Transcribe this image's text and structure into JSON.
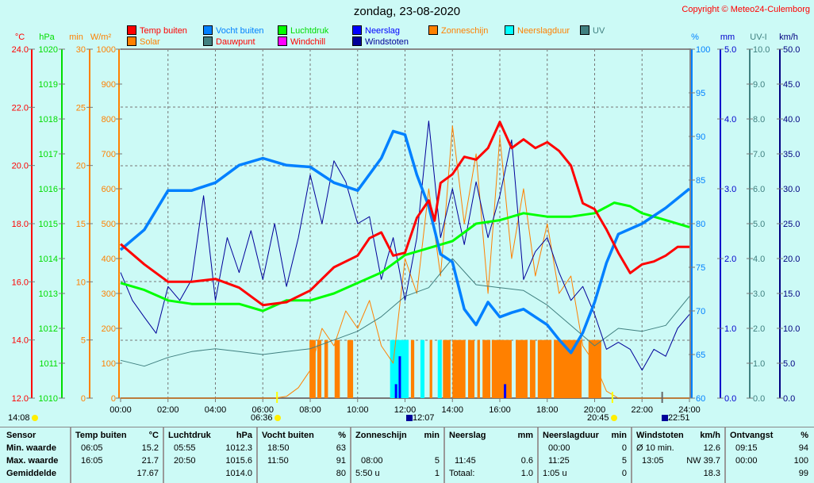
{
  "title": "zondag, 23-08-2020",
  "copyright": "Copyright © Meteo24-Culemborg",
  "legend": [
    {
      "label": "Temp buiten",
      "color": "#ff0000",
      "text_color": "#ff0000"
    },
    {
      "label": "Vocht buiten",
      "color": "#0080ff",
      "text_color": "#0080ff"
    },
    {
      "label": "Luchtdruk",
      "color": "#00ff00",
      "text_color": "#00dd00"
    },
    {
      "label": "Neerslag",
      "color": "#0000ff",
      "text_color": "#0000ff"
    },
    {
      "label": "Zonneschijn",
      "color": "#ff8000",
      "text_color": "#ff8000"
    },
    {
      "label": "Neerslagduur",
      "color": "#00ffff",
      "text_color": "#ff8000"
    },
    {
      "label": "UV",
      "color": "#408080",
      "text_color": "#408080"
    },
    {
      "label": "Solar",
      "color": "#ff8000",
      "text_color": "#ff8000"
    },
    {
      "label": "Dauwpunt",
      "color": "#408080",
      "text_color": "#ff0000"
    },
    {
      "label": "Windchill",
      "color": "#ff00ff",
      "text_color": "#ff0000"
    },
    {
      "label": "Windstoten",
      "color": "#000099",
      "text_color": "#000099"
    }
  ],
  "chart_data": {
    "type": "line",
    "x_ticks": [
      "00:00",
      "02:00",
      "04:00",
      "06:00",
      "08:00",
      "10:00",
      "12:00",
      "14:00",
      "16:00",
      "18:00",
      "20:00",
      "22:00",
      "24:00"
    ],
    "xlim": [
      0,
      24
    ],
    "grid": true,
    "axes": {
      "temp": {
        "unit": "°C",
        "range": [
          12,
          24
        ],
        "ticks": [
          "12.0",
          "14.0",
          "16.0",
          "18.0",
          "20.0",
          "22.0",
          "24.0"
        ],
        "color": "#ff0000"
      },
      "pressure": {
        "unit": "hPa",
        "range": [
          1010,
          1020
        ],
        "ticks": [
          "1010",
          "1011",
          "1012",
          "1013",
          "1014",
          "1015",
          "1016",
          "1017",
          "1018",
          "1019",
          "1020"
        ],
        "color": "#00dd00"
      },
      "minutes": {
        "unit": "min",
        "range": [
          0,
          30
        ],
        "ticks": [
          "0",
          "5",
          "10",
          "15",
          "20",
          "25",
          "30"
        ],
        "color": "#ff8000"
      },
      "solar": {
        "unit": "W/m²",
        "range": [
          0,
          1000
        ],
        "ticks": [
          "0",
          "100",
          "200",
          "300",
          "400",
          "500",
          "600",
          "700",
          "800",
          "900",
          "1000"
        ],
        "color": "#ff8000"
      },
      "humidity": {
        "unit": "%",
        "range": [
          60,
          100
        ],
        "ticks": [
          "60",
          "65",
          "70",
          "75",
          "80",
          "85",
          "90",
          "95",
          "100"
        ],
        "color": "#0080ff"
      },
      "rain": {
        "unit": "mm",
        "range": [
          0,
          5
        ],
        "ticks": [
          "0.0",
          "1.0",
          "2.0",
          "3.0",
          "4.0",
          "5.0"
        ],
        "color": "#0000cc"
      },
      "uv": {
        "unit": "UV-I",
        "range": [
          0,
          10
        ],
        "ticks": [
          "0.0",
          "1.0",
          "2.0",
          "3.0",
          "4.0",
          "5.0",
          "6.0",
          "7.0",
          "8.0",
          "9.0",
          "10.0"
        ],
        "color": "#408080"
      },
      "wind": {
        "unit": "km/h",
        "range": [
          0,
          50
        ],
        "ticks": [
          "0.0",
          "5.0",
          "10.0",
          "15.0",
          "20.0",
          "25.0",
          "30.0",
          "35.0",
          "40.0",
          "45.0",
          "50.0"
        ],
        "color": "#000080"
      }
    },
    "series": [
      {
        "name": "Temp buiten",
        "axis": "temp",
        "color": "#ff0000",
        "x": [
          0,
          1,
          2,
          3,
          4,
          5,
          6,
          7,
          8,
          9,
          10,
          10.5,
          11,
          11.5,
          12,
          12.5,
          13,
          13.25,
          13.5,
          14,
          14.5,
          15,
          15.5,
          16,
          16.5,
          17,
          17.5,
          18,
          18.5,
          19,
          19.5,
          20,
          20.5,
          21,
          21.5,
          22,
          22.5,
          23,
          23.5,
          24
        ],
        "y": [
          17.3,
          16.6,
          16.0,
          16.0,
          16.1,
          15.8,
          15.2,
          15.3,
          15.7,
          16.5,
          16.9,
          17.5,
          17.7,
          16.9,
          17.0,
          18.2,
          18.8,
          18.1,
          19.4,
          19.7,
          20.3,
          20.2,
          20.6,
          21.5,
          20.6,
          20.9,
          20.6,
          20.8,
          20.5,
          20.0,
          18.7,
          18.5,
          17.8,
          17.0,
          16.3,
          16.6,
          16.7,
          16.9,
          17.2,
          17.2
        ]
      },
      {
        "name": "Vocht buiten",
        "axis": "humidity",
        "color": "#0080ff",
        "x": [
          0,
          1,
          2,
          3,
          4,
          5,
          6,
          7,
          8,
          9,
          10,
          11,
          11.5,
          12,
          12.5,
          13,
          13.5,
          14,
          14.5,
          15,
          15.5,
          16,
          16.5,
          17,
          17.5,
          18,
          18.5,
          19,
          19.5,
          20,
          20.5,
          21,
          22,
          23,
          24
        ],
        "y": [
          77,
          79.3,
          83.8,
          83.8,
          84.7,
          86.7,
          87.5,
          86.7,
          86.5,
          84.7,
          83.8,
          87.5,
          90.6,
          90.2,
          85.6,
          82,
          76.5,
          75.6,
          70.2,
          68.4,
          71,
          69.3,
          69.8,
          70.2,
          69.3,
          68.4,
          66.7,
          65.2,
          67.5,
          71,
          75.5,
          78.8,
          80,
          81.8,
          84
        ]
      },
      {
        "name": "Luchtdruk",
        "axis": "pressure",
        "color": "#00ff00",
        "x": [
          0,
          1,
          2,
          3,
          4,
          5,
          6,
          7,
          8,
          9,
          10,
          11,
          12,
          13,
          14,
          15,
          16,
          17,
          18,
          19,
          20,
          20.83,
          21.5,
          22,
          23,
          24
        ],
        "y": [
          1013.3,
          1013.1,
          1012.8,
          1012.7,
          1012.7,
          1012.7,
          1012.5,
          1012.8,
          1012.8,
          1013.0,
          1013.3,
          1013.6,
          1014.1,
          1014.3,
          1014.5,
          1015.0,
          1015.1,
          1015.3,
          1015.2,
          1015.2,
          1015.3,
          1015.6,
          1015.5,
          1015.3,
          1015.1,
          1014.9
        ]
      },
      {
        "name": "Dauwpunt",
        "axis": "temp",
        "color": "#408080",
        "x": [
          0,
          1,
          2,
          3,
          4,
          5,
          6,
          7,
          8,
          9,
          10,
          11,
          12,
          13,
          14,
          15,
          16,
          17,
          18,
          19,
          20,
          21,
          22,
          23,
          24
        ],
        "y": [
          13.3,
          13.1,
          13.4,
          13.6,
          13.7,
          13.6,
          13.5,
          13.6,
          13.7,
          14.0,
          14.3,
          14.8,
          15.5,
          15.8,
          16.8,
          15.9,
          15.8,
          15.7,
          15.2,
          14.5,
          13.8,
          14.4,
          14.3,
          14.5,
          15.5
        ]
      },
      {
        "name": "Solar",
        "axis": "solar",
        "color": "#ff8000",
        "x": [
          0,
          6.5,
          7,
          7.5,
          8,
          8.5,
          9,
          9.5,
          10,
          10.5,
          11,
          11.5,
          12,
          12.5,
          13,
          13.5,
          14,
          14.5,
          15,
          15.5,
          16,
          16.5,
          17,
          17.5,
          18,
          18.5,
          19,
          19.5,
          20,
          20.5,
          21,
          24
        ],
        "y": [
          0,
          0,
          5,
          30,
          80,
          200,
          150,
          250,
          200,
          280,
          150,
          100,
          400,
          300,
          600,
          350,
          780,
          500,
          700,
          300,
          750,
          400,
          600,
          350,
          500,
          300,
          350,
          150,
          100,
          20,
          0,
          0
        ]
      },
      {
        "name": "Windstoten",
        "axis": "wind",
        "color": "#000099",
        "x": [
          0,
          0.5,
          1,
          1.5,
          2,
          2.5,
          3,
          3.5,
          4,
          4.5,
          5,
          5.5,
          6,
          6.5,
          7,
          7.5,
          8,
          8.5,
          9,
          9.5,
          10,
          10.5,
          11,
          11.5,
          12,
          12.5,
          13,
          13.5,
          14,
          14.5,
          15,
          15.5,
          16,
          16.5,
          17,
          17.5,
          18,
          18.5,
          19,
          19.5,
          20,
          20.5,
          21,
          21.5,
          22,
          22.5,
          23,
          23.5,
          24
        ],
        "y": [
          18,
          14,
          11.6,
          9.3,
          16,
          14,
          17,
          29,
          14,
          23,
          18,
          24,
          17,
          25,
          16,
          23,
          32,
          25,
          34,
          31,
          25,
          26,
          17,
          23,
          14,
          23,
          39.7,
          23,
          30,
          22,
          31,
          23,
          29,
          37,
          17,
          21,
          23,
          18,
          14,
          16,
          12,
          7,
          8,
          7,
          4,
          7,
          6,
          10,
          12
        ]
      }
    ],
    "bars": {
      "Zonneschijn": {
        "axis": "minutes",
        "value": 5,
        "color": "#ff8000",
        "intervals": [
          [
            7.97,
            8.23
          ],
          [
            8.3,
            8.47
          ],
          [
            8.6,
            8.75
          ],
          [
            9.03,
            9.25
          ],
          [
            9.57,
            9.81
          ],
          [
            12.25,
            12.39
          ],
          [
            13.04,
            13.15
          ],
          [
            13.6,
            13.92
          ],
          [
            14.0,
            14.55
          ],
          [
            14.66,
            14.93
          ],
          [
            15.05,
            15.16
          ],
          [
            15.27,
            15.6
          ],
          [
            15.66,
            16.5
          ],
          [
            16.67,
            17.17
          ],
          [
            17.27,
            17.5
          ],
          [
            17.6,
            18.18
          ],
          [
            18.28,
            19.45
          ],
          [
            19.74,
            20.28
          ]
        ]
      },
      "Neerslagduur": {
        "axis": "minutes",
        "value": 5,
        "color": "#00ffff",
        "intervals": [
          [
            11.37,
            12.15
          ],
          [
            12.65,
            12.82
          ],
          [
            13.38,
            13.55
          ]
        ]
      },
      "Neerslag": {
        "axis": "rain",
        "color": "#0000ff",
        "points": [
          {
            "x": 11.62,
            "y": 0.2
          },
          {
            "x": 11.78,
            "y": 0.6
          },
          {
            "x": 16.22,
            "y": 0.2
          }
        ]
      }
    }
  },
  "markers": [
    {
      "time": "14:08",
      "icon": "moon-icon"
    },
    {
      "time": "06:36",
      "icon": "sunrise-icon"
    },
    {
      "time": "12:07",
      "icon": "moon-phase-icon"
    },
    {
      "time": "20:45",
      "icon": "sunset-icon"
    },
    {
      "time": "22:51",
      "icon": "moonset-icon"
    }
  ],
  "table": {
    "row_labels": [
      "Sensor",
      "Min. waarde",
      "Max. waarde",
      "Gemiddelde"
    ],
    "columns": [
      {
        "header": "Temp buiten",
        "unit": "°C",
        "rows": [
          [
            "06:05",
            "15.2"
          ],
          [
            "16:05",
            "21.7"
          ],
          [
            "",
            "17.67"
          ]
        ]
      },
      {
        "header": "Luchtdruk",
        "unit": "hPa",
        "rows": [
          [
            "05:55",
            "1012.3"
          ],
          [
            "20:50",
            "1015.6"
          ],
          [
            "",
            "1014.0"
          ]
        ]
      },
      {
        "header": "Vocht buiten",
        "unit": "%",
        "rows": [
          [
            "18:50",
            "63"
          ],
          [
            "11:50",
            "91"
          ],
          [
            "",
            "80"
          ]
        ]
      },
      {
        "header": "Zonneschijn",
        "unit": "min",
        "rows": [
          [
            "",
            ""
          ],
          [
            "08:00",
            "5"
          ],
          [
            "5:50 u",
            "1"
          ]
        ]
      },
      {
        "header": "Neerslag",
        "unit": "mm",
        "rows": [
          [
            "",
            ""
          ],
          [
            "11:45",
            "0.6"
          ],
          [
            "Totaal:",
            "1.0"
          ]
        ]
      },
      {
        "header": "Neerslagduur",
        "unit": "min",
        "rows": [
          [
            "00:00",
            "0"
          ],
          [
            "11:25",
            "5"
          ],
          [
            "1:05 u",
            "0"
          ]
        ]
      },
      {
        "header": "Windstoten",
        "unit": "km/h",
        "rows": [
          [
            "Ø 10 min.",
            "12.6"
          ],
          [
            "13:05",
            "NW 39.7"
          ],
          [
            "",
            "18.3"
          ]
        ]
      },
      {
        "header": "Ontvangst",
        "unit": "%",
        "rows": [
          [
            "09:15",
            "94"
          ],
          [
            "00:00",
            "100"
          ],
          [
            "",
            "99"
          ]
        ]
      }
    ]
  }
}
